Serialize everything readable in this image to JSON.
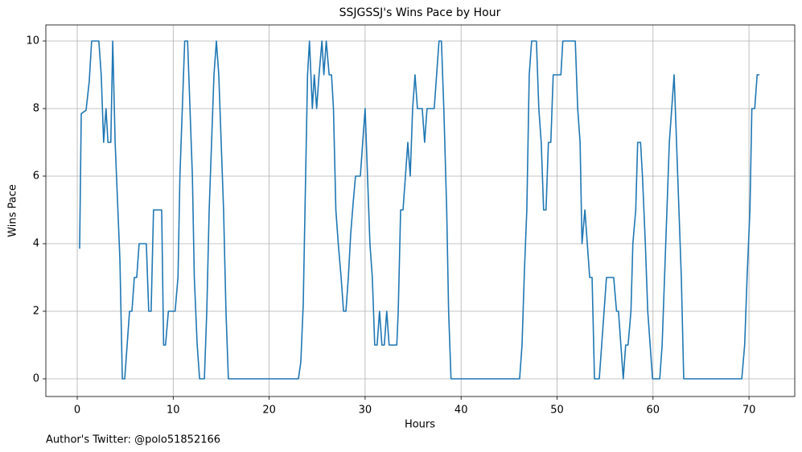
{
  "chart_data": {
    "type": "line",
    "title": "SSJGSSJ's Wins Pace by Hour",
    "x_label": "Hours",
    "y_label": "Wins Pace",
    "annotation": "Author's Twitter: @polo51852166",
    "color": "#1f77b4",
    "grid": true,
    "xlim": [
      -3.27,
      74.77
    ],
    "ylim": [
      -0.524,
      10.476
    ],
    "xticks": [
      0,
      10,
      20,
      30,
      40,
      50,
      60,
      70
    ],
    "yticks": [
      0,
      2,
      4,
      6,
      8,
      10
    ],
    "x": [
      0.25,
      0.42,
      0.92,
      1.25,
      1.5,
      2.25,
      2.5,
      2.75,
      3.0,
      3.2,
      3.5,
      3.7,
      3.95,
      4.45,
      4.7,
      4.95,
      5.2,
      5.45,
      5.7,
      5.95,
      6.2,
      6.45,
      7.2,
      7.45,
      7.7,
      7.95,
      8.8,
      9.0,
      9.2,
      9.5,
      10.2,
      10.5,
      10.7,
      11.2,
      11.5,
      12.0,
      12.2,
      12.5,
      12.75,
      13.25,
      13.5,
      13.75,
      14.25,
      14.5,
      14.75,
      15.25,
      15.5,
      15.75,
      23.05,
      23.3,
      23.55,
      23.8,
      24.0,
      24.2,
      24.5,
      24.7,
      24.95,
      25.2,
      25.5,
      25.7,
      25.95,
      26.25,
      26.5,
      26.7,
      26.95,
      27.2,
      27.5,
      27.75,
      28.0,
      28.25,
      28.5,
      28.75,
      29.0,
      29.5,
      29.75,
      30.0,
      30.25,
      30.5,
      30.75,
      31.0,
      31.25,
      31.5,
      31.75,
      32.0,
      32.25,
      32.5,
      33.3,
      33.45,
      33.7,
      33.95,
      34.2,
      34.45,
      34.7,
      34.95,
      35.2,
      35.45,
      35.95,
      36.2,
      36.45,
      37.2,
      37.45,
      37.7,
      37.95,
      38.2,
      38.5,
      38.7,
      38.95,
      46.1,
      46.35,
      46.6,
      46.85,
      47.1,
      47.35,
      47.85,
      48.1,
      48.35,
      48.6,
      48.85,
      49.1,
      49.35,
      49.6,
      50.4,
      50.6,
      51.9,
      52.15,
      52.4,
      52.6,
      52.9,
      53.15,
      53.4,
      53.65,
      53.9,
      54.4,
      54.65,
      54.9,
      55.15,
      55.9,
      56.2,
      56.4,
      56.65,
      56.9,
      57.15,
      57.4,
      57.7,
      57.9,
      58.2,
      58.4,
      58.7,
      58.9,
      59.2,
      59.45,
      59.7,
      59.95,
      60.7,
      60.95,
      61.2,
      61.45,
      61.7,
      61.95,
      62.2,
      62.45,
      62.7,
      62.95,
      63.2,
      69.25,
      69.55,
      69.8,
      70.1,
      70.3,
      70.6,
      70.85,
      71.1
    ],
    "values": [
      3.85,
      7.85,
      7.95,
      8.8,
      10,
      10,
      9,
      7,
      8,
      7,
      7,
      10,
      7,
      3.5,
      0,
      0,
      1,
      2,
      2,
      3,
      3,
      4,
      4,
      2,
      2,
      5,
      5,
      1,
      1,
      2,
      2,
      3,
      6,
      10,
      10,
      6,
      3,
      1,
      0,
      0,
      2,
      5,
      9,
      10,
      9,
      5,
      2,
      0,
      0,
      0.5,
      2.2,
      6,
      9,
      10,
      8,
      9,
      8,
      9,
      10,
      9,
      10,
      9,
      9,
      8,
      5,
      4,
      3,
      2,
      2,
      3,
      4.3,
      5.2,
      6,
      6,
      7,
      8,
      6,
      4,
      3,
      1,
      1,
      2,
      1,
      1,
      2,
      1,
      1,
      2,
      5,
      5,
      6,
      7,
      6,
      8,
      9,
      8,
      8,
      7,
      8,
      8,
      9,
      10,
      10,
      8,
      5,
      2,
      0,
      0,
      1,
      3.2,
      5,
      9,
      10,
      10,
      8,
      7,
      5,
      5,
      7,
      7,
      9,
      9,
      10,
      10,
      8,
      7,
      4,
      5,
      4,
      3,
      3,
      0,
      0,
      1,
      2,
      3,
      3,
      2,
      2,
      1,
      0,
      1,
      1,
      2,
      4,
      5,
      7,
      7,
      6,
      4,
      2,
      1,
      0,
      0,
      1,
      3,
      5,
      7,
      8,
      9,
      7,
      5,
      3,
      0,
      0,
      1,
      3,
      5,
      8,
      8,
      9,
      9
    ]
  }
}
